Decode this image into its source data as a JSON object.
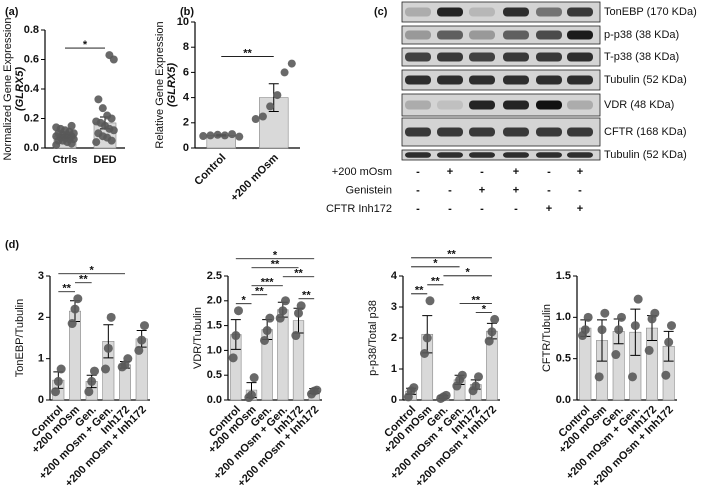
{
  "chart_data": [
    {
      "type": "bar",
      "panel": "(a)",
      "categories": [
        "Ctrls",
        "DED"
      ],
      "values": [
        0.08,
        0.17
      ],
      "errors": [
        0.01,
        0.04
      ],
      "points": [
        [
          0.02,
          0.03,
          0.04,
          0.05,
          0.05,
          0.06,
          0.06,
          0.07,
          0.07,
          0.08,
          0.08,
          0.09,
          0.09,
          0.1,
          0.1,
          0.11,
          0.12,
          0.13,
          0.14,
          0.15
        ],
        [
          0.04,
          0.05,
          0.07,
          0.08,
          0.1,
          0.12,
          0.13,
          0.15,
          0.17,
          0.18,
          0.2,
          0.22,
          0.27,
          0.33,
          0.6,
          0.63
        ]
      ],
      "color": "#d9d9d9",
      "point_color": "#595959",
      "ylim": [
        0,
        0.8
      ],
      "yticks": [
        {
          "value": 0,
          "label": "0.0"
        },
        0.2,
        0.4,
        0.6,
        0.8
      ],
      "ylabel": "Normalized Gene Expression",
      "ylabel_gene": "(GLRX5)",
      "comparisons": [
        {
          "groups": [
            "Ctrls",
            "DED"
          ],
          "label": "*"
        }
      ]
    },
    {
      "type": "bar",
      "panel": "(b)",
      "categories": [
        "Control",
        "+200 mOsm"
      ],
      "values": [
        1.0,
        4.0
      ],
      "errors": [
        0.05,
        1.1
      ],
      "points": [
        [
          0.95,
          1.0,
          1.05,
          1.0,
          1.1,
          0.9
        ],
        [
          2.3,
          2.5,
          3.3,
          4.2,
          6.0,
          6.7
        ]
      ],
      "color": "#d9d9d9",
      "point_color": "#595959",
      "ylim": [
        0,
        10
      ],
      "yticks": [
        0,
        2,
        4,
        6,
        8,
        10
      ],
      "ylabel": "Relative Gene Expression",
      "ylabel_gene": "(GLRX5)",
      "comparisons": [
        {
          "groups": [
            "Control",
            "+200 mOsm"
          ],
          "label": "**"
        }
      ]
    },
    {
      "type": "bar",
      "panel": "(d)",
      "categories": [
        "Control",
        "+200 mOsm",
        "Gen.",
        "+200 mOsm + Gen.",
        "Inh172",
        "+200 mOsm + Inh172"
      ],
      "values": [
        0.48,
        2.15,
        0.45,
        1.42,
        0.85,
        1.48
      ],
      "errors": [
        0.2,
        0.25,
        0.15,
        0.4,
        0.08,
        0.2
      ],
      "points": [
        [
          0.2,
          0.45,
          0.75
        ],
        [
          1.85,
          2.2,
          2.45
        ],
        [
          0.2,
          0.45,
          0.7
        ],
        [
          0.75,
          1.25,
          2.0
        ],
        [
          0.8,
          0.85,
          1.0
        ],
        [
          1.2,
          1.45,
          1.8
        ]
      ],
      "color": "#d9d9d9",
      "point_color": "#595959",
      "ylim": [
        0,
        3
      ],
      "yticks": [
        0,
        1,
        2,
        3
      ],
      "ylabel": "TonEBP/Tubulin",
      "comparisons": [
        {
          "groups": [
            "Control",
            "+200 mOsm"
          ],
          "label": "**"
        },
        {
          "groups": [
            "+200 mOsm",
            "Gen."
          ],
          "label": "**"
        },
        {
          "groups": [
            "Control",
            "Inh172"
          ],
          "label": "*"
        }
      ]
    },
    {
      "type": "bar",
      "categories": [
        "Control",
        "+200 mOsm",
        "Gen.",
        "+200 mOsm + Gen.",
        "Inh172",
        "+200 mOsm + Inh172"
      ],
      "values": [
        1.32,
        0.2,
        1.42,
        1.82,
        1.6,
        0.18
      ],
      "errors": [
        0.3,
        0.15,
        0.2,
        0.15,
        0.25,
        0.05
      ],
      "points": [
        [
          0.85,
          1.3,
          1.8
        ],
        [
          0.05,
          0.1,
          0.45
        ],
        [
          1.2,
          1.4,
          1.65
        ],
        [
          1.65,
          1.8,
          2.0
        ],
        [
          1.3,
          1.75,
          1.9
        ],
        [
          0.12,
          0.18,
          0.2
        ]
      ],
      "color": "#d9d9d9",
      "point_color": "#595959",
      "ylim": [
        0,
        2.5
      ],
      "yticks": [
        {
          "value": 0,
          "label": "0.0"
        },
        0.5,
        {
          "value": 1,
          "label": "1.0"
        },
        1.5,
        {
          "value": 2,
          "label": "2.0"
        },
        2.5
      ],
      "ylabel": "VDR/Tubulin",
      "comparisons": [
        {
          "groups": [
            "Control",
            "+200 mOsm"
          ],
          "label": "*"
        },
        {
          "groups": [
            "+200 mOsm",
            "Gen."
          ],
          "label": "**"
        },
        {
          "groups": [
            "+200 mOsm",
            "+200 mOsm + Gen."
          ],
          "label": "***"
        },
        {
          "groups": [
            "Inh172",
            "+200 mOsm + Inh172"
          ],
          "label": "**"
        },
        {
          "groups": [
            "+200 mOsm + Gen.",
            "+200 mOsm + Inh172"
          ],
          "label": "**"
        },
        {
          "groups": [
            "+200 mOsm",
            "Inh172"
          ],
          "label": "**"
        },
        {
          "groups": [
            "Control",
            "+200 mOsm + Inh172"
          ],
          "label": "*"
        }
      ]
    },
    {
      "type": "bar",
      "categories": [
        "Control",
        "+200 mOsm",
        "Gen.",
        "+200 mOsm + Gen.",
        "Inh172",
        "+200 mOsm + Inh172"
      ],
      "values": [
        0.28,
        2.12,
        0.1,
        0.65,
        0.5,
        2.22
      ],
      "errors": [
        0.1,
        0.6,
        0.05,
        0.15,
        0.15,
        0.25
      ],
      "points": [
        [
          0.1,
          0.3,
          0.4
        ],
        [
          1.5,
          2.0,
          3.2
        ],
        [
          0.05,
          0.1,
          0.15
        ],
        [
          0.45,
          0.65,
          0.8
        ],
        [
          0.3,
          0.45,
          0.75
        ],
        [
          1.9,
          2.2,
          2.6
        ]
      ],
      "color": "#d9d9d9",
      "point_color": "#595959",
      "ylim": [
        0,
        4
      ],
      "yticks": [
        0,
        1,
        2,
        3,
        4
      ],
      "ylabel": "p-p38/Total p38",
      "comparisons": [
        {
          "groups": [
            "Control",
            "+200 mOsm"
          ],
          "label": "**"
        },
        {
          "groups": [
            "+200 mOsm",
            "Gen."
          ],
          "label": "**"
        },
        {
          "groups": [
            "Inh172",
            "+200 mOsm + Inh172"
          ],
          "label": "*"
        },
        {
          "groups": [
            "+200 mOsm + Gen.",
            "+200 mOsm + Inh172"
          ],
          "label": "**"
        },
        {
          "groups": [
            "Gen.",
            "+200 mOsm + Inh172"
          ],
          "label": "*"
        },
        {
          "groups": [
            "Control",
            "+200 mOsm + Gen."
          ],
          "label": "*"
        },
        {
          "groups": [
            "Control",
            "+200 mOsm + Inh172"
          ],
          "label": "**"
        }
      ]
    },
    {
      "type": "bar",
      "categories": [
        "Control",
        "+200 mOsm",
        "Gen.",
        "+200 mOsm + Gen.",
        "Inh172",
        "+200 mOsm + Inh172"
      ],
      "values": [
        0.87,
        0.72,
        0.83,
        0.82,
        0.87,
        0.65
      ],
      "errors": [
        0.1,
        0.25,
        0.15,
        0.28,
        0.15,
        0.18
      ],
      "points": [
        [
          0.78,
          0.85,
          1.0
        ],
        [
          0.28,
          0.85,
          1.05
        ],
        [
          0.55,
          0.85,
          1.0
        ],
        [
          0.28,
          0.9,
          1.22
        ],
        [
          0.6,
          0.98,
          1.05
        ],
        [
          0.3,
          0.7,
          0.9
        ]
      ],
      "color": "#d9d9d9",
      "point_color": "#595959",
      "ylim": [
        0,
        1.5
      ],
      "yticks": [
        {
          "value": 0,
          "label": "0.0"
        },
        0.5,
        {
          "value": 1,
          "label": "1.0"
        },
        1.5
      ],
      "ylabel": "CFTR/Tubulin",
      "comparisons": []
    }
  ],
  "blot": {
    "panel": "(c)",
    "proteins": [
      "TonEBP (170 KDa)",
      "p-p38 (38 KDa)",
      "T-p38 (38 KDa)",
      "Tubulin (52 KDa)",
      "VDR (48 KDa)",
      "CFTR (168 KDa)",
      "Tubulin (52 KDa)"
    ],
    "treatments": [
      {
        "name": "+200 mOsm",
        "signs": [
          "-",
          "+",
          "-",
          "+",
          "-",
          "+"
        ]
      },
      {
        "name": "Genistein",
        "signs": [
          "-",
          "-",
          "+",
          "+",
          "-",
          "-"
        ]
      },
      {
        "name": "CFTR Inh172",
        "signs": [
          "-",
          "-",
          "-",
          "-",
          "+",
          "+"
        ]
      }
    ]
  }
}
